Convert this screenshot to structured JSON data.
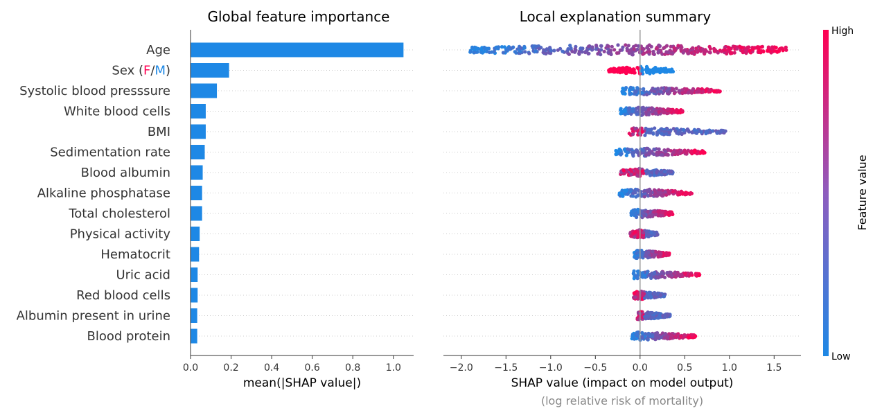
{
  "chart_data": [
    {
      "type": "bar",
      "orientation": "horizontal",
      "title": "Global feature importance",
      "xlabel": "mean(|SHAP value|)",
      "xlim": [
        0,
        1.1
      ],
      "xticks": [
        "0.0",
        "0.2",
        "0.4",
        "0.6",
        "0.8",
        "1.0"
      ],
      "bar_color": "#1E88E5",
      "sex_label_parts": [
        "Sex (",
        "F",
        "/",
        "M",
        ")"
      ],
      "sex_colors": {
        "F": "#FF0052",
        "M": "#1E88E5"
      },
      "categories": [
        "Age",
        "Sex (F/M)",
        "Systolic blood presssure",
        "White blood cells",
        "BMI",
        "Sedimentation rate",
        "Blood albumin",
        "Alkaline phosphatase",
        "Total cholesterol",
        "Physical activity",
        "Hematocrit",
        "Uric acid",
        "Red blood cells",
        "Albumin present in urine",
        "Blood protein"
      ],
      "values": [
        1.05,
        0.19,
        0.13,
        0.075,
        0.075,
        0.07,
        0.06,
        0.057,
        0.057,
        0.045,
        0.042,
        0.035,
        0.035,
        0.033,
        0.033
      ]
    },
    {
      "type": "scatter",
      "subtype": "beeswarm",
      "title": "Local explanation summary",
      "xlabel": "SHAP value (impact on model output)",
      "xlabel_sub": "(log relative risk of mortality)",
      "xlim": [
        -2.2,
        1.8
      ],
      "xticks": [
        "−2.0",
        "−1.5",
        "−1.0",
        "−0.5",
        "0.0",
        "0.5",
        "1.0",
        "1.5"
      ],
      "colorbar": {
        "title": "Feature value",
        "high": "High",
        "low": "Low",
        "high_color": "#FF0052",
        "low_color": "#1E88E5"
      },
      "features": [
        {
          "name": "Age",
          "min": -1.9,
          "max": 1.65
        },
        {
          "name": "Sex (F/M)",
          "min": -0.35,
          "max": 0.37
        },
        {
          "name": "Systolic blood presssure",
          "min": -0.2,
          "max": 0.9
        },
        {
          "name": "White blood cells",
          "min": -0.22,
          "max": 0.48
        },
        {
          "name": "BMI",
          "min": -0.12,
          "max": 0.96
        },
        {
          "name": "Sedimentation rate",
          "min": -0.27,
          "max": 0.73
        },
        {
          "name": "Blood albumin",
          "min": -0.22,
          "max": 0.37
        },
        {
          "name": "Alkaline phosphatase",
          "min": -0.24,
          "max": 0.58
        },
        {
          "name": "Total cholesterol",
          "min": -0.1,
          "max": 0.37
        },
        {
          "name": "Physical activity",
          "min": -0.12,
          "max": 0.2
        },
        {
          "name": "Hematocrit",
          "min": -0.07,
          "max": 0.34
        },
        {
          "name": "Uric acid",
          "min": -0.08,
          "max": 0.67
        },
        {
          "name": "Red blood cells",
          "min": -0.08,
          "max": 0.28
        },
        {
          "name": "Albumin present in urine",
          "min": -0.03,
          "max": 0.34
        },
        {
          "name": "Blood protein",
          "min": -0.09,
          "max": 0.62
        }
      ]
    }
  ]
}
